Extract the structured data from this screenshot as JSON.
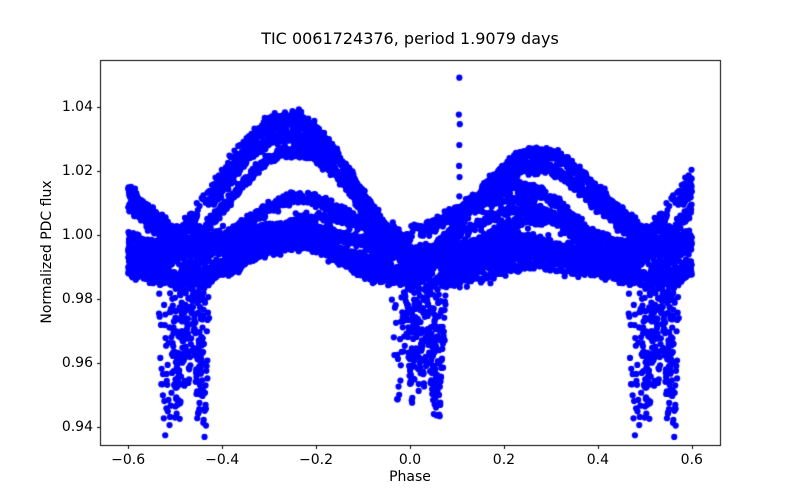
{
  "window": {
    "background": "#ffffff"
  },
  "chart_data": {
    "type": "scatter",
    "title": "TIC 0061724376, period 1.9079 days",
    "xlabel": "Phase",
    "ylabel": "Normalized PDC flux",
    "xlim": [
      -0.66,
      0.66
    ],
    "ylim": [
      0.9345,
      1.0545
    ],
    "xticks": [
      {
        "v": -0.6,
        "label": "−0.6"
      },
      {
        "v": -0.4,
        "label": "−0.4"
      },
      {
        "v": -0.2,
        "label": "−0.2"
      },
      {
        "v": 0.0,
        "label": "0.0"
      },
      {
        "v": 0.2,
        "label": "0.2"
      },
      {
        "v": 0.4,
        "label": "0.4"
      },
      {
        "v": 0.6,
        "label": "0.6"
      }
    ],
    "yticks": [
      {
        "v": 0.94,
        "label": "0.94"
      },
      {
        "v": 0.96,
        "label": "0.96"
      },
      {
        "v": 0.98,
        "label": "0.98"
      },
      {
        "v": 1.0,
        "label": "1.00"
      },
      {
        "v": 1.02,
        "label": "1.02"
      },
      {
        "v": 1.04,
        "label": "1.04"
      }
    ],
    "grid": false,
    "legend": null,
    "axes_color": "#000000",
    "marker": {
      "color": "#0000ff",
      "radius": 3.1
    },
    "description": "Phase-folded TESS PDC light curve of an eclipsing binary. Dense blue point cloud (many sectors overlaid): out-of-eclipse humps peak near phase -0.27 (flux ~1.039) and +0.32 (~1.025); band floor ~0.985. Narrow eclipse dips drift in phase: near 0.0 to +0.07 (bottoms 0.944-0.956) and near -0.53..-0.43 / wrap +0.47..+0.57 (bottoms down to ~0.940). Fold plotted over -0.6..0.6 so |phase|>0.5 duplicates the opposite side. Outlier column at phase 0.105 up to flux 1.049.",
    "seed": 1337,
    "noise_sigma": 0.0009,
    "fold_duplicate_beyond": 0.4,
    "sectors": [
      {
        "n": 1500,
        "c": 0.006,
        "e": 0.01,
        "s": 0.02,
        "r": -0.27,
        "p": 0.062,
        "d1": 0.045,
        "w1": 0.015,
        "d2": 0.07,
        "w2": 0.015
      },
      {
        "n": 1400,
        "c": 0.004,
        "e": 0.009,
        "s": 0.018,
        "r": -0.29,
        "p": 0.055,
        "d1": 0.042,
        "w1": 0.014,
        "d2": 0.06,
        "w2": 0.014
      },
      {
        "n": 1300,
        "c": 0.002,
        "e": 0.008,
        "s": 0.016,
        "r": -0.24,
        "p": 0.046,
        "d1": 0.04,
        "w1": 0.014,
        "d2": 0.05,
        "w2": 0.013
      },
      {
        "n": 1400,
        "c": 0.004,
        "e": 0.009,
        "s": 0.014,
        "r": 0.33,
        "p": 0.03,
        "d1": 0.04,
        "w1": 0.013,
        "d2": 0.045,
        "w2": 0.013
      },
      {
        "n": 1300,
        "c": 0.002,
        "e": 0.008,
        "s": 0.012,
        "r": 0.3,
        "p": 0.02,
        "d1": 0.038,
        "w1": 0.014,
        "d2": 0.042,
        "w2": 0.013
      },
      {
        "n": 1200,
        "c": 0.0,
        "e": 0.007,
        "s": 0.01,
        "r": 0.14,
        "p": 0.01,
        "d1": 0.042,
        "w1": 0.013,
        "d2": 0.04,
        "w2": 0.012
      },
      {
        "n": 1200,
        "c": -0.002,
        "e": 0.006,
        "s": 0.008,
        "r": -0.18,
        "p": 0.0,
        "d1": 0.045,
        "w1": 0.013,
        "d2": 0.045,
        "w2": 0.012
      },
      {
        "n": 700,
        "c": 0.0,
        "e": 0.007,
        "s": 0.009,
        "r": 0.05,
        "p": -0.012,
        "d1": 0.04,
        "w1": 0.013,
        "d2": 0.048,
        "w2": 0.013
      },
      {
        "n": 600,
        "c": -0.004,
        "e": 0.006,
        "s": 0.006,
        "r": 0.18,
        "p": -0.022,
        "d1": 0.042,
        "w1": 0.013,
        "d2": 0.05,
        "w2": 0.014
      },
      {
        "n": 300,
        "c": 0.005,
        "e": 0.009,
        "s": 0.024,
        "r": -0.28,
        "p": -0.028,
        "d1": 0.052,
        "w1": 0.014,
        "d2": 0.045,
        "w2": 0.012
      },
      {
        "n": 280,
        "c": 0.003,
        "e": 0.008,
        "s": 0.021,
        "r": -0.25,
        "p": 0.066,
        "d1": 0.046,
        "w1": 0.013,
        "d2": 0.066,
        "w2": 0.013
      },
      {
        "n": 240,
        "c": 0.002,
        "e": 0.007,
        "s": 0.012,
        "r": 0.31,
        "p": 0.038,
        "d1": 0.04,
        "w1": 0.012,
        "d2": 0.04,
        "w2": 0.012
      },
      {
        "n": 1100,
        "c": -0.005,
        "e": 0.005,
        "s": 0.004,
        "r": -0.05,
        "p": 0.004,
        "d1": 0.044,
        "w1": 0.013,
        "d2": 0.042,
        "w2": 0.012
      },
      {
        "n": 1100,
        "c": -0.003,
        "e": 0.006,
        "s": 0.005,
        "r": 0.45,
        "p": 0.05,
        "d1": 0.046,
        "w1": 0.014,
        "d2": 0.055,
        "w2": 0.014
      }
    ],
    "outliers": [
      [
        0.105,
        1.049
      ],
      [
        0.104,
        1.0375
      ],
      [
        0.106,
        1.0345
      ],
      [
        0.105,
        1.028
      ],
      [
        0.1045,
        1.0215
      ],
      [
        0.1055,
        1.018
      ],
      [
        0.105,
        1.012
      ],
      [
        0.1035,
        1.006
      ],
      [
        0.106,
        1.002
      ]
    ]
  }
}
